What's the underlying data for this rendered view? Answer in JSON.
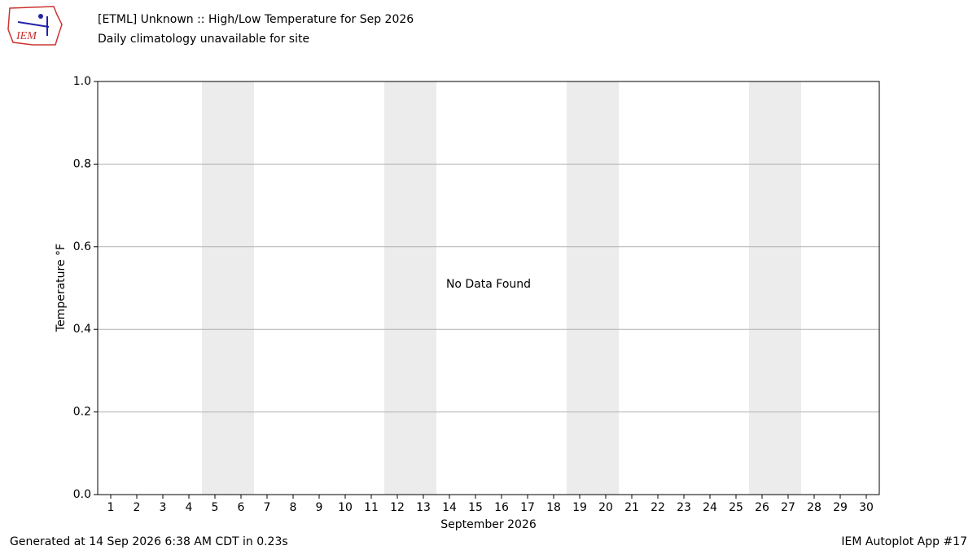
{
  "chart_data": {
    "type": "line",
    "title": "[ETML] Unknown :: High/Low Temperature for Sep 2026",
    "subtitle": "Daily climatology unavailable for site",
    "y_label": "Temperature °F",
    "x_label": "September 2026",
    "annotation": "No Data Found",
    "x": [],
    "series": [],
    "xlim": [
      0.5,
      30.5
    ],
    "xticks": [
      1,
      2,
      3,
      4,
      5,
      6,
      7,
      8,
      9,
      10,
      11,
      12,
      13,
      14,
      15,
      16,
      17,
      18,
      19,
      20,
      21,
      22,
      23,
      24,
      25,
      26,
      27,
      28,
      29,
      30
    ],
    "ylim": [
      0,
      1
    ],
    "yticks": [
      {
        "value": 0,
        "label": "0.0"
      },
      {
        "value": 0.2,
        "label": "0.2"
      },
      {
        "value": 0.4,
        "label": "0.4"
      },
      {
        "value": 0.6,
        "label": "0.6"
      },
      {
        "value": 0.8,
        "label": "0.8"
      },
      {
        "value": 1,
        "label": "1.0"
      }
    ],
    "grid": true,
    "weekend_shading": [
      [
        5,
        6
      ],
      [
        12,
        13
      ],
      [
        19,
        20
      ],
      [
        26,
        27
      ]
    ],
    "shading_color": "#ececec"
  },
  "footer": {
    "left": "Generated at 14 Sep 2026 6:38 AM CDT in 0.23s",
    "right": "IEM Autoplot App #17"
  },
  "logo": {
    "text": "IEM"
  }
}
